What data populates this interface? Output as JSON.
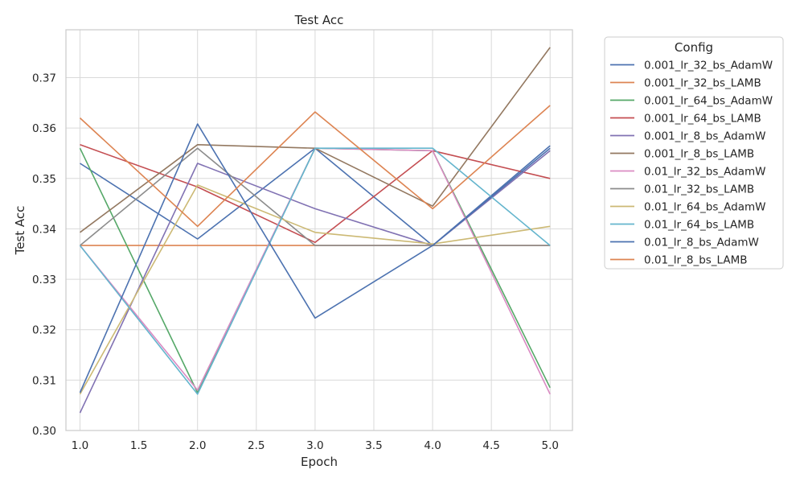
{
  "chart_data": {
    "type": "line",
    "title": "Test Acc",
    "xlabel": "Epoch",
    "ylabel": "Test Acc",
    "xlim": [
      0.88,
      5.19
    ],
    "ylim": [
      0.3,
      0.3795
    ],
    "x_ticks": [
      1.0,
      1.5,
      2.0,
      2.5,
      3.0,
      3.5,
      4.0,
      4.5,
      5.0
    ],
    "x_tick_labels": [
      "1.0",
      "1.5",
      "2.0",
      "2.5",
      "3.0",
      "3.5",
      "4.0",
      "4.5",
      "5.0"
    ],
    "y_ticks": [
      0.3,
      0.31,
      0.32,
      0.33,
      0.34,
      0.35,
      0.36,
      0.37
    ],
    "y_tick_labels": [
      "0.30",
      "0.31",
      "0.32",
      "0.33",
      "0.34",
      "0.35",
      "0.36",
      "0.37"
    ],
    "grid": true,
    "legend_title": "Config",
    "legend_position": "outside-right",
    "x": [
      1,
      2,
      3,
      4,
      5
    ],
    "series": [
      {
        "name": "0.001_lr_32_bs_AdamW",
        "color": "#4c72b0",
        "values": [
          0.353,
          0.338,
          0.356,
          0.3367,
          0.3565
        ]
      },
      {
        "name": "0.001_lr_32_bs_LAMB",
        "color": "#dd8452",
        "values": [
          0.3367,
          0.3367,
          0.3367,
          0.3367,
          0.3367
        ]
      },
      {
        "name": "0.001_lr_64_bs_AdamW",
        "color": "#55a868",
        "values": [
          0.356,
          0.3075,
          0.356,
          0.3555,
          0.3085
        ]
      },
      {
        "name": "0.001_lr_64_bs_LAMB",
        "color": "#c44e52",
        "values": [
          0.3567,
          0.3483,
          0.3373,
          0.3555,
          0.35
        ]
      },
      {
        "name": "0.001_lr_8_bs_AdamW",
        "color": "#8172b3",
        "values": [
          0.3035,
          0.353,
          0.344,
          0.3367,
          0.3555
        ]
      },
      {
        "name": "0.001_lr_8_bs_LAMB",
        "color": "#937860",
        "values": [
          0.3393,
          0.3567,
          0.356,
          0.3445,
          0.376
        ]
      },
      {
        "name": "0.01_lr_32_bs_AdamW",
        "color": "#da8bc3",
        "values": [
          0.3367,
          0.308,
          0.356,
          0.3555,
          0.3072
        ]
      },
      {
        "name": "0.01_lr_32_bs_LAMB",
        "color": "#8c8c8c",
        "values": [
          0.3367,
          0.356,
          0.3367,
          0.3367,
          0.3367
        ]
      },
      {
        "name": "0.01_lr_64_bs_AdamW",
        "color": "#ccb974",
        "values": [
          0.3072,
          0.3487,
          0.3393,
          0.337,
          0.3405
        ]
      },
      {
        "name": "0.01_lr_64_bs_LAMB",
        "color": "#64b5cd",
        "values": [
          0.3367,
          0.3072,
          0.356,
          0.356,
          0.3367
        ]
      },
      {
        "name": "0.01_lr_8_bs_AdamW",
        "color": "#4c72b0",
        "values": [
          0.3075,
          0.3608,
          0.3223,
          0.3367,
          0.356
        ]
      },
      {
        "name": "0.01_lr_8_bs_LAMB",
        "color": "#dd8452",
        "values": [
          0.362,
          0.3405,
          0.3632,
          0.344,
          0.3645
        ]
      }
    ]
  }
}
